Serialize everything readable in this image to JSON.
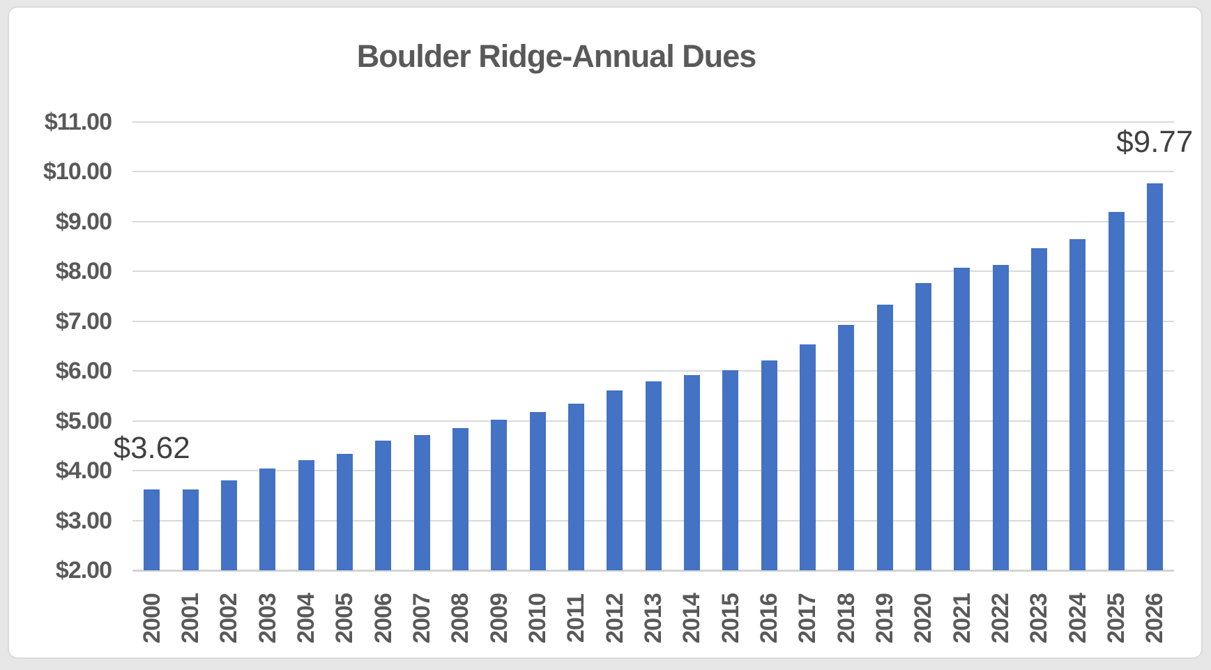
{
  "chart_data": {
    "type": "bar",
    "title": "Boulder Ridge-Annual Dues",
    "categories": [
      "2000",
      "2001",
      "2002",
      "2003",
      "2004",
      "2005",
      "2006",
      "2007",
      "2008",
      "2009",
      "2010",
      "2011",
      "2012",
      "2013",
      "2014",
      "2015",
      "2016",
      "2017",
      "2018",
      "2019",
      "2020",
      "2021",
      "2022",
      "2023",
      "2024",
      "2025",
      "2026"
    ],
    "values": [
      3.62,
      3.62,
      3.8,
      4.04,
      4.21,
      4.34,
      4.6,
      4.72,
      4.85,
      5.03,
      5.18,
      5.34,
      5.61,
      5.79,
      5.92,
      6.02,
      6.22,
      6.53,
      6.93,
      7.33,
      7.77,
      8.08,
      8.13,
      8.47,
      8.65,
      9.19,
      9.77
    ],
    "xlabel": "",
    "ylabel": "",
    "ylim": [
      2,
      11
    ],
    "ytick_labels": [
      "$11.00",
      "$10.00",
      "$9.00",
      "$8.00",
      "$7.00",
      "$6.00",
      "$5.00",
      "$4.00",
      "$3.00",
      "$2.00"
    ],
    "ytick_values": [
      11,
      10,
      9,
      8,
      7,
      6,
      5,
      4,
      3,
      2
    ],
    "grid": "horizontal",
    "legend": "none",
    "data_labels": [
      {
        "index": 0,
        "text": "$3.62"
      },
      {
        "index": 26,
        "text": "$9.77"
      }
    ],
    "colors": {
      "bar_fill": "#4472C4",
      "gridline": "#D9D9D9",
      "axis_text": "#595959",
      "title_text": "#595959",
      "data_label_text": "#404040",
      "card_background": "#FFFFFF",
      "page_background": "#E7E7E7"
    }
  }
}
